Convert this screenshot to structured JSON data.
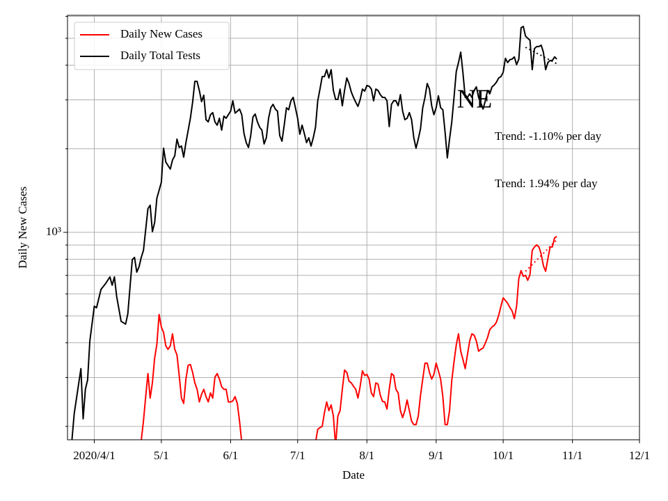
{
  "chart_data": {
    "type": "line",
    "xlabel": "Date",
    "ylabel": "Daily New Cases",
    "log_y": true,
    "grid": true,
    "legend": "upper left",
    "xlim": [
      "2020-03-20",
      "2020-12-01"
    ],
    "xticks": [
      {
        "value": "2020-04-01",
        "label": "2020/4/1"
      },
      {
        "value": "2020-05-01",
        "label": "5/1"
      },
      {
        "value": "2020-06-01",
        "label": "6/1"
      },
      {
        "value": "2020-07-01",
        "label": "7/1"
      },
      {
        "value": "2020-08-01",
        "label": "8/1"
      },
      {
        "value": "2020-09-01",
        "label": "9/1"
      },
      {
        "value": "2020-10-01",
        "label": "10/1"
      },
      {
        "value": "2020-11-01",
        "label": "11/1"
      },
      {
        "value": "2020-12-01",
        "label": "12/1"
      }
    ],
    "ylim": [
      179,
      6050
    ],
    "yticks": [
      {
        "value": 1000,
        "label": "10³"
      }
    ],
    "yminorticks": [
      200,
      300,
      400,
      500,
      600,
      700,
      800,
      900,
      2000,
      3000,
      4000,
      5000,
      6000
    ],
    "annotation": "NE",
    "series": [
      {
        "name": "Daily New Cases",
        "color": "#ff0000",
        "x": [
          "2020-04-22",
          "2020-04-23",
          "2020-04-24",
          "2020-04-25",
          "2020-04-26",
          "2020-04-27",
          "2020-04-28",
          "2020-04-29",
          "2020-04-30",
          "2020-05-01",
          "2020-05-02",
          "2020-05-03",
          "2020-05-04",
          "2020-05-05",
          "2020-05-06",
          "2020-05-07",
          "2020-05-08",
          "2020-05-09",
          "2020-05-10",
          "2020-05-11",
          "2020-05-12",
          "2020-05-13",
          "2020-05-14",
          "2020-05-15",
          "2020-05-16",
          "2020-05-17",
          "2020-05-18",
          "2020-05-19",
          "2020-05-20",
          "2020-05-21",
          "2020-05-22",
          "2020-05-23",
          "2020-05-24",
          "2020-05-25",
          "2020-05-26",
          "2020-05-27",
          "2020-05-28",
          "2020-05-29",
          "2020-05-30",
          "2020-05-31",
          "2020-06-01",
          "2020-06-02",
          "2020-06-03",
          "2020-06-04",
          "2020-06-05",
          "2020-06-06",
          "2020-06-07",
          "2020-07-09",
          "2020-07-10",
          "2020-07-11",
          "2020-07-12",
          "2020-07-13",
          "2020-07-14",
          "2020-07-15",
          "2020-07-16",
          "2020-07-17",
          "2020-07-18",
          "2020-07-19",
          "2020-07-20",
          "2020-07-21",
          "2020-07-22",
          "2020-07-23",
          "2020-07-24",
          "2020-07-25",
          "2020-07-26",
          "2020-07-27",
          "2020-07-28",
          "2020-07-29",
          "2020-07-30",
          "2020-07-31",
          "2020-08-01",
          "2020-08-02",
          "2020-08-03",
          "2020-08-04",
          "2020-08-05",
          "2020-08-06",
          "2020-08-07",
          "2020-08-08",
          "2020-08-09",
          "2020-08-10",
          "2020-08-11",
          "2020-08-12",
          "2020-08-13",
          "2020-08-14",
          "2020-08-15",
          "2020-08-16",
          "2020-08-17",
          "2020-08-18",
          "2020-08-19",
          "2020-08-20",
          "2020-08-21",
          "2020-08-22",
          "2020-08-23",
          "2020-08-24",
          "2020-08-25",
          "2020-08-26",
          "2020-08-27",
          "2020-08-28",
          "2020-08-29",
          "2020-08-30",
          "2020-08-31",
          "2020-09-01",
          "2020-09-02",
          "2020-09-03",
          "2020-09-04",
          "2020-09-05",
          "2020-09-06",
          "2020-09-07",
          "2020-09-08",
          "2020-09-09",
          "2020-09-10",
          "2020-09-11",
          "2020-09-12",
          "2020-09-13",
          "2020-09-14",
          "2020-09-15",
          "2020-09-16",
          "2020-09-17",
          "2020-09-18",
          "2020-09-19",
          "2020-09-20",
          "2020-09-21",
          "2020-09-22",
          "2020-09-23",
          "2020-09-24",
          "2020-09-25",
          "2020-09-26",
          "2020-09-27",
          "2020-09-28",
          "2020-09-29",
          "2020-09-30",
          "2020-10-01",
          "2020-10-02",
          "2020-10-03",
          "2020-10-04",
          "2020-10-05",
          "2020-10-06",
          "2020-10-07",
          "2020-10-08",
          "2020-10-09",
          "2020-10-10",
          "2020-10-11",
          "2020-10-12",
          "2020-10-13",
          "2020-10-14",
          "2020-10-15",
          "2020-10-16",
          "2020-10-17",
          "2020-10-18",
          "2020-10-19",
          "2020-10-20",
          "2020-10-21",
          "2020-10-22",
          "2020-10-23",
          "2020-10-24",
          "2020-10-25"
        ],
        "values": [
          178,
          209,
          256,
          310,
          253,
          287,
          352,
          395,
          506,
          456,
          436,
          390,
          379,
          390,
          431,
          379,
          362,
          305,
          253,
          242,
          296,
          332,
          334,
          313,
          287,
          272,
          245,
          261,
          272,
          256,
          245,
          264,
          253,
          301,
          310,
          296,
          278,
          272,
          272,
          245,
          245,
          247,
          256,
          242,
          209,
          175,
          null,
          175,
          195,
          198,
          200,
          224,
          245,
          228,
          239,
          218,
          170,
          218,
          228,
          272,
          319,
          313,
          291,
          287,
          279,
          272,
          253,
          279,
          317,
          305,
          308,
          296,
          264,
          256,
          287,
          284,
          259,
          246,
          245,
          231,
          272,
          310,
          305,
          272,
          264,
          228,
          215,
          228,
          249,
          228,
          209,
          203,
          203,
          218,
          259,
          296,
          338,
          338,
          313,
          296,
          308,
          338,
          317,
          296,
          256,
          203,
          203,
          228,
          293,
          342,
          393,
          431,
          373,
          348,
          323,
          362,
          406,
          431,
          426,
          406,
          373,
          379,
          383,
          399,
          418,
          446,
          456,
          462,
          475,
          503,
          542,
          581,
          568,
          555,
          536,
          521,
          489,
          542,
          683,
          728,
          695,
          700,
          672,
          704,
          861,
          886,
          901,
          886,
          836,
          758,
          724,
          803,
          886,
          886,
          955,
          966
        ]
      },
      {
        "name": "Daily Total Tests",
        "color": "#000000",
        "x": [
          "2020-03-22",
          "2020-03-23",
          "2020-03-26",
          "2020-03-27",
          "2020-03-28",
          "2020-03-29",
          "2020-03-30",
          "2020-04-01",
          "2020-04-02",
          "2020-04-04",
          "2020-04-06",
          "2020-04-08",
          "2020-04-09",
          "2020-04-10",
          "2020-04-11",
          "2020-04-13",
          "2020-04-15",
          "2020-04-16",
          "2020-04-17",
          "2020-04-18",
          "2020-04-19",
          "2020-04-20",
          "2020-04-21",
          "2020-04-22",
          "2020-04-23",
          "2020-04-24",
          "2020-04-25",
          "2020-04-26",
          "2020-04-27",
          "2020-04-28",
          "2020-04-29",
          "2020-05-01",
          "2020-05-02",
          "2020-05-03",
          "2020-05-05",
          "2020-05-06",
          "2020-05-07",
          "2020-05-08",
          "2020-05-09",
          "2020-05-10",
          "2020-05-11",
          "2020-05-12",
          "2020-05-14",
          "2020-05-15",
          "2020-05-16",
          "2020-05-17",
          "2020-05-18",
          "2020-05-19",
          "2020-05-20",
          "2020-05-21",
          "2020-05-22",
          "2020-05-23",
          "2020-05-24",
          "2020-05-25",
          "2020-05-26",
          "2020-05-27",
          "2020-05-28",
          "2020-05-29",
          "2020-05-30",
          "2020-05-31",
          "2020-06-01",
          "2020-06-02",
          "2020-06-03",
          "2020-06-04",
          "2020-06-05",
          "2020-06-06",
          "2020-06-07",
          "2020-06-08",
          "2020-06-09",
          "2020-06-10",
          "2020-06-11",
          "2020-06-12",
          "2020-06-13",
          "2020-06-14",
          "2020-06-15",
          "2020-06-16",
          "2020-06-17",
          "2020-06-18",
          "2020-06-19",
          "2020-06-20",
          "2020-06-21",
          "2020-06-22",
          "2020-06-23",
          "2020-06-24",
          "2020-06-25",
          "2020-06-26",
          "2020-06-27",
          "2020-06-28",
          "2020-06-29",
          "2020-06-30",
          "2020-07-01",
          "2020-07-02",
          "2020-07-03",
          "2020-07-04",
          "2020-07-05",
          "2020-07-06",
          "2020-07-07",
          "2020-07-08",
          "2020-07-09",
          "2020-07-10",
          "2020-07-11",
          "2020-07-12",
          "2020-07-13",
          "2020-07-14",
          "2020-07-15",
          "2020-07-16",
          "2020-07-17",
          "2020-07-18",
          "2020-07-19",
          "2020-07-20",
          "2020-07-21",
          "2020-07-22",
          "2020-07-23",
          "2020-07-24",
          "2020-07-25",
          "2020-07-26",
          "2020-07-27",
          "2020-07-28",
          "2020-07-29",
          "2020-07-30",
          "2020-07-31",
          "2020-08-01",
          "2020-08-02",
          "2020-08-03",
          "2020-08-04",
          "2020-08-05",
          "2020-08-06",
          "2020-08-07",
          "2020-08-08",
          "2020-08-09",
          "2020-08-10",
          "2020-08-11",
          "2020-08-12",
          "2020-08-13",
          "2020-08-14",
          "2020-08-15",
          "2020-08-16",
          "2020-08-17",
          "2020-08-18",
          "2020-08-19",
          "2020-08-20",
          "2020-08-21",
          "2020-08-22",
          "2020-08-23",
          "2020-08-24",
          "2020-08-25",
          "2020-08-26",
          "2020-08-27",
          "2020-08-28",
          "2020-08-29",
          "2020-08-30",
          "2020-08-31",
          "2020-09-01",
          "2020-09-02",
          "2020-09-03",
          "2020-09-04",
          "2020-09-05",
          "2020-09-06",
          "2020-09-07",
          "2020-09-08",
          "2020-09-09",
          "2020-09-10",
          "2020-09-11",
          "2020-09-12",
          "2020-09-13",
          "2020-09-14",
          "2020-09-15",
          "2020-09-16",
          "2020-09-17",
          "2020-09-18",
          "2020-09-19",
          "2020-09-20",
          "2020-09-21",
          "2020-09-22",
          "2020-09-23",
          "2020-09-24",
          "2020-09-25",
          "2020-09-26",
          "2020-09-27",
          "2020-09-28",
          "2020-09-29",
          "2020-09-30",
          "2020-10-01",
          "2020-10-02",
          "2020-10-03",
          "2020-10-04",
          "2020-10-05",
          "2020-10-06",
          "2020-10-07",
          "2020-10-08",
          "2020-10-09",
          "2020-10-10",
          "2020-10-11",
          "2020-10-12",
          "2020-10-13",
          "2020-10-14",
          "2020-10-15",
          "2020-10-16",
          "2020-10-17",
          "2020-10-18",
          "2020-10-19",
          "2020-10-20",
          "2020-10-21",
          "2020-10-22",
          "2020-10-23",
          "2020-10-24",
          "2020-10-25"
        ],
        "values": [
          179,
          222,
          323,
          213,
          272,
          294,
          406,
          542,
          535,
          623,
          653,
          691,
          645,
          691,
          588,
          478,
          467,
          509,
          638,
          798,
          812,
          719,
          750,
          812,
          861,
          1023,
          1217,
          1252,
          1006,
          1084,
          1327,
          1514,
          2010,
          1791,
          1690,
          1822,
          1886,
          2167,
          2022,
          2046,
          1866,
          2104,
          2576,
          2942,
          3498,
          3498,
          3244,
          2958,
          3118,
          2546,
          2500,
          2653,
          2699,
          2500,
          2432,
          2576,
          2334,
          2622,
          2576,
          2653,
          2730,
          2977,
          2688,
          2730,
          2780,
          2653,
          2270,
          2104,
          2022,
          2229,
          2603,
          2667,
          2500,
          2390,
          2334,
          2082,
          2191,
          2576,
          2811,
          2891,
          2780,
          2730,
          2229,
          2130,
          2432,
          2811,
          2763,
          2977,
          3063,
          2811,
          2576,
          2256,
          2432,
          2270,
          2104,
          2191,
          2046,
          2191,
          2390,
          2977,
          3281,
          3640,
          3640,
          3855,
          3598,
          3855,
          3244,
          3011,
          3011,
          3281,
          2858,
          3244,
          3598,
          3437,
          3206,
          3063,
          2942,
          2842,
          3011,
          3281,
          3226,
          3380,
          3360,
          3281,
          2977,
          3281,
          3244,
          3133,
          3063,
          3063,
          2977,
          2404,
          2891,
          2977,
          2977,
          2858,
          3133,
          2730,
          2546,
          2576,
          2699,
          2546,
          2191,
          2010,
          2167,
          2361,
          2811,
          3063,
          3437,
          3281,
          2858,
          2653,
          2811,
          3103,
          2811,
          2763,
          2295,
          1854,
          2167,
          2500,
          3063,
          3793,
          4088,
          4457,
          3748,
          3063,
          3063,
          3155,
          3063,
          3244,
          3342,
          3063,
          2925,
          2780,
          2977,
          3244,
          3155,
          3342,
          3398,
          3477,
          3598,
          3640,
          3770,
          4236,
          4088,
          4188,
          4207,
          4285,
          4018,
          4207,
          5457,
          5518,
          5093,
          5000,
          4920,
          3855,
          4589,
          4668,
          4668,
          4721,
          4457,
          3855,
          4088,
          4159,
          4159,
          4285,
          4207
        ]
      }
    ],
    "trends": [
      {
        "color": "#000000",
        "x": [
          "2020-10-11",
          "2020-10-25"
        ],
        "values": [
          4640,
          4050
        ],
        "label": "Trend: -1.10% per day"
      },
      {
        "color": "#ff0000",
        "x": [
          "2020-10-11",
          "2020-10-25"
        ],
        "values": [
          724,
          940
        ],
        "label": "Trend: 1.94% per day"
      }
    ]
  }
}
